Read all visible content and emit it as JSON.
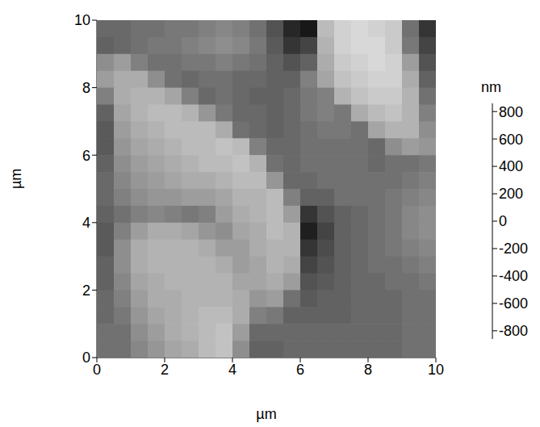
{
  "chart_data": {
    "type": "heatmap",
    "x_label": "µm",
    "y_label": "µm",
    "xlim": [
      0,
      10
    ],
    "ylim": [
      0,
      10
    ],
    "xticks": [
      0,
      2,
      4,
      6,
      8,
      10
    ],
    "yticks": [
      0,
      2,
      4,
      6,
      8,
      10
    ],
    "x": [
      0.25,
      0.75,
      1.25,
      1.75,
      2.25,
      2.75,
      3.25,
      3.75,
      4.25,
      4.75,
      5.25,
      5.75,
      6.25,
      6.75,
      7.25,
      7.75,
      8.25,
      8.75,
      9.25,
      9.75
    ],
    "y": [
      9.75,
      9.25,
      8.75,
      8.25,
      7.75,
      7.25,
      6.75,
      6.25,
      5.75,
      5.25,
      4.75,
      4.25,
      3.75,
      3.25,
      2.75,
      2.25,
      1.75,
      1.25,
      0.75,
      0.25
    ],
    "z": [
      [
        -150,
        -150,
        -100,
        -100,
        -50,
        -50,
        0,
        50,
        0,
        -100,
        -300,
        -600,
        -700,
        400,
        550,
        600,
        550,
        500,
        -100,
        -500
      ],
      [
        -200,
        -150,
        -100,
        -50,
        -50,
        0,
        50,
        100,
        50,
        -50,
        -250,
        -500,
        -400,
        350,
        550,
        600,
        600,
        500,
        -50,
        -400
      ],
      [
        100,
        200,
        0,
        -100,
        -100,
        -50,
        -50,
        0,
        -50,
        -100,
        -200,
        -300,
        -200,
        300,
        500,
        550,
        600,
        550,
        200,
        -300
      ],
      [
        200,
        300,
        300,
        100,
        -100,
        -150,
        -100,
        -100,
        -150,
        -150,
        -200,
        -200,
        0,
        250,
        450,
        500,
        550,
        550,
        300,
        -200
      ],
      [
        0,
        300,
        350,
        350,
        250,
        0,
        -150,
        -100,
        -150,
        -200,
        -200,
        -150,
        -50,
        0,
        350,
        450,
        500,
        500,
        350,
        -100
      ],
      [
        -200,
        250,
        350,
        400,
        400,
        350,
        150,
        -50,
        -150,
        -150,
        -200,
        -150,
        -50,
        0,
        -50,
        300,
        400,
        450,
        350,
        0
      ],
      [
        -250,
        200,
        300,
        350,
        400,
        400,
        400,
        300,
        -100,
        -150,
        -200,
        -150,
        -100,
        -50,
        -50,
        -100,
        250,
        350,
        350,
        100
      ],
      [
        -250,
        150,
        250,
        300,
        350,
        400,
        400,
        450,
        400,
        0,
        -150,
        -150,
        -100,
        -100,
        -100,
        -100,
        -150,
        100,
        200,
        150
      ],
      [
        -200,
        100,
        200,
        250,
        300,
        350,
        400,
        400,
        450,
        350,
        -100,
        -150,
        -100,
        -100,
        -100,
        -100,
        -150,
        -100,
        -100,
        -50
      ],
      [
        -150,
        50,
        150,
        200,
        250,
        300,
        300,
        350,
        400,
        400,
        150,
        -150,
        -150,
        -100,
        -100,
        -100,
        -100,
        -100,
        -50,
        0
      ],
      [
        -150,
        0,
        100,
        150,
        150,
        200,
        200,
        250,
        350,
        350,
        400,
        0,
        -200,
        -200,
        -100,
        -100,
        -100,
        -50,
        0,
        50
      ],
      [
        -200,
        -100,
        0,
        50,
        0,
        -50,
        0,
        200,
        300,
        350,
        400,
        200,
        -500,
        -300,
        -200,
        -150,
        -100,
        -50,
        50,
        100
      ],
      [
        -250,
        0,
        200,
        300,
        300,
        250,
        150,
        100,
        250,
        300,
        400,
        350,
        -650,
        -400,
        -200,
        -150,
        -100,
        -50,
        50,
        100
      ],
      [
        -250,
        100,
        300,
        350,
        350,
        350,
        300,
        200,
        200,
        300,
        350,
        350,
        -500,
        -350,
        -200,
        -150,
        -100,
        -50,
        0,
        50
      ],
      [
        -200,
        100,
        300,
        350,
        350,
        350,
        350,
        300,
        200,
        250,
        350,
        300,
        -400,
        -300,
        -200,
        -150,
        -100,
        -100,
        -50,
        0
      ],
      [
        -200,
        50,
        250,
        300,
        350,
        350,
        350,
        350,
        250,
        250,
        300,
        200,
        -300,
        -250,
        -200,
        -150,
        -150,
        -100,
        -100,
        -50
      ],
      [
        -150,
        0,
        200,
        300,
        300,
        350,
        350,
        350,
        300,
        150,
        200,
        -100,
        -250,
        -200,
        -200,
        -150,
        -150,
        -150,
        -100,
        -100
      ],
      [
        -150,
        -50,
        150,
        250,
        300,
        350,
        400,
        400,
        300,
        0,
        -50,
        -200,
        -200,
        -200,
        -200,
        -150,
        -150,
        -150,
        -100,
        -100
      ],
      [
        -100,
        -100,
        100,
        200,
        300,
        350,
        400,
        450,
        200,
        -150,
        -150,
        -150,
        -150,
        -150,
        -150,
        -150,
        -150,
        -150,
        -100,
        -100
      ],
      [
        -100,
        -100,
        50,
        150,
        250,
        300,
        400,
        450,
        100,
        -200,
        -200,
        -150,
        -150,
        -150,
        -150,
        -150,
        -150,
        -150,
        -100,
        -100
      ]
    ],
    "colors": [
      "#000000",
      "#ffffff"
    ],
    "colorbar_label": "nm",
    "colorbar_lim": [
      -860,
      860
    ],
    "colorbar_ticks": [
      800,
      600,
      400,
      200,
      0,
      -200,
      -400,
      -600,
      -800
    ]
  }
}
